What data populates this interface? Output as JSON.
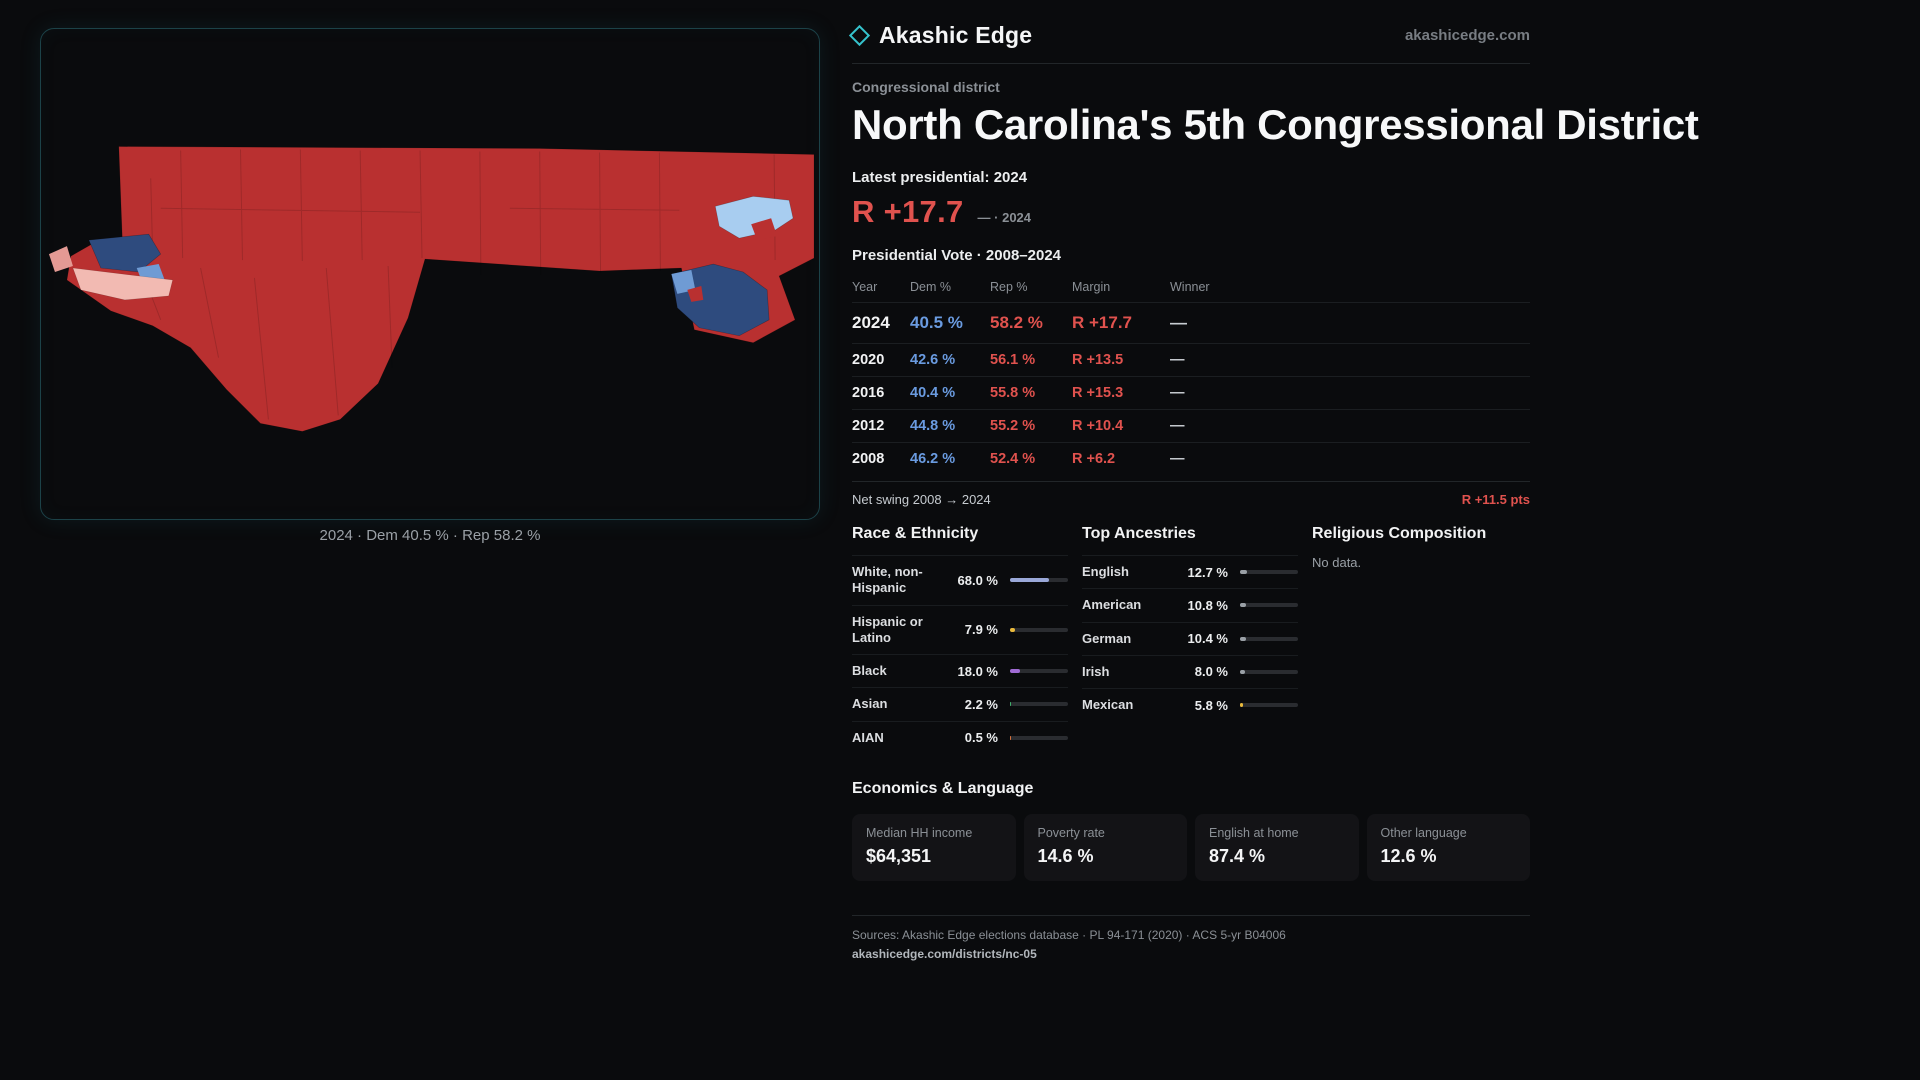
{
  "colors": {
    "page_bg": "#0a0b0d",
    "rep_red": "#e0524e",
    "dem_blue": "#6a9be0",
    "map_red": "#b93030",
    "map_navy": "#2e4b7e",
    "map_light_blue": "#a8cdf0",
    "map_mid_blue": "#6f9bd4",
    "map_pink": "#f2bab2",
    "map_pink_dark": "#e49a94",
    "panel_border": "#1f4d53"
  },
  "brand": {
    "name": "Akashic Edge",
    "domain": "akashicedge.com"
  },
  "map": {
    "caption": "2024 · Dem 40.5 % · Rep 58.2 %"
  },
  "header": {
    "kicker": "Congressional district",
    "title": "North Carolina's 5th Congressional District",
    "latest_label": "Latest presidential: 2024",
    "headline_margin": "R +17.7",
    "headline_note": "— · 2024"
  },
  "vote_table": {
    "title": "Presidential Vote · 2008–2024",
    "columns": [
      "Year",
      "Dem %",
      "Rep %",
      "Margin",
      "Winner"
    ],
    "rows": [
      {
        "year": "2024",
        "dem": "40.5 %",
        "rep": "58.2 %",
        "margin": "R +17.7",
        "winner": "—"
      },
      {
        "year": "2020",
        "dem": "42.6 %",
        "rep": "56.1 %",
        "margin": "R +13.5",
        "winner": "—"
      },
      {
        "year": "2016",
        "dem": "40.4 %",
        "rep": "55.8 %",
        "margin": "R +15.3",
        "winner": "—"
      },
      {
        "year": "2012",
        "dem": "44.8 %",
        "rep": "55.2 %",
        "margin": "R +10.4",
        "winner": "—"
      },
      {
        "year": "2008",
        "dem": "46.2 %",
        "rep": "52.4 %",
        "margin": "R +6.2",
        "winner": "—"
      }
    ]
  },
  "net_swing": {
    "label": "Net swing 2008 → 2024",
    "value": "R +11.5 pts"
  },
  "race": {
    "title": "Race & Ethnicity",
    "rows": [
      {
        "label": "White, non-Hispanic",
        "value": "68.0 %",
        "pct": 68,
        "color": "#9aa8d8"
      },
      {
        "label": "Hispanic or Latino",
        "value": "7.9 %",
        "pct": 7.9,
        "color": "#e8b93c"
      },
      {
        "label": "Black",
        "value": "18.0 %",
        "pct": 18,
        "color": "#a06bd4"
      },
      {
        "label": "Asian",
        "value": "2.2 %",
        "pct": 2.2,
        "color": "#3fae6a"
      },
      {
        "label": "AIAN",
        "value": "0.5 %",
        "pct": 0.5,
        "color": "#d4703c"
      }
    ]
  },
  "ancestries": {
    "title": "Top Ancestries",
    "rows": [
      {
        "label": "English",
        "value": "12.7 %",
        "pct": 12.7,
        "color": "#9aa0a6"
      },
      {
        "label": "American",
        "value": "10.8 %",
        "pct": 10.8,
        "color": "#9aa0a6"
      },
      {
        "label": "German",
        "value": "10.4 %",
        "pct": 10.4,
        "color": "#9aa0a6"
      },
      {
        "label": "Irish",
        "value": "8.0 %",
        "pct": 8.0,
        "color": "#9aa0a6"
      },
      {
        "label": "Mexican",
        "value": "5.8 %",
        "pct": 5.8,
        "color": "#e8b93c"
      }
    ]
  },
  "religion": {
    "title": "Religious Composition",
    "empty": "No data."
  },
  "economics": {
    "title": "Economics & Language",
    "stats": [
      {
        "label": "Median HH income",
        "value": "$64,351"
      },
      {
        "label": "Poverty rate",
        "value": "14.6 %"
      },
      {
        "label": "English at home",
        "value": "87.4 %"
      },
      {
        "label": "Other language",
        "value": "12.6 %"
      }
    ]
  },
  "footer": {
    "sources": "Sources: Akashic Edge elections database · PL 94-171 (2020) · ACS 5-yr B04006",
    "link": "akashicedge.com/districts/nc-05"
  }
}
